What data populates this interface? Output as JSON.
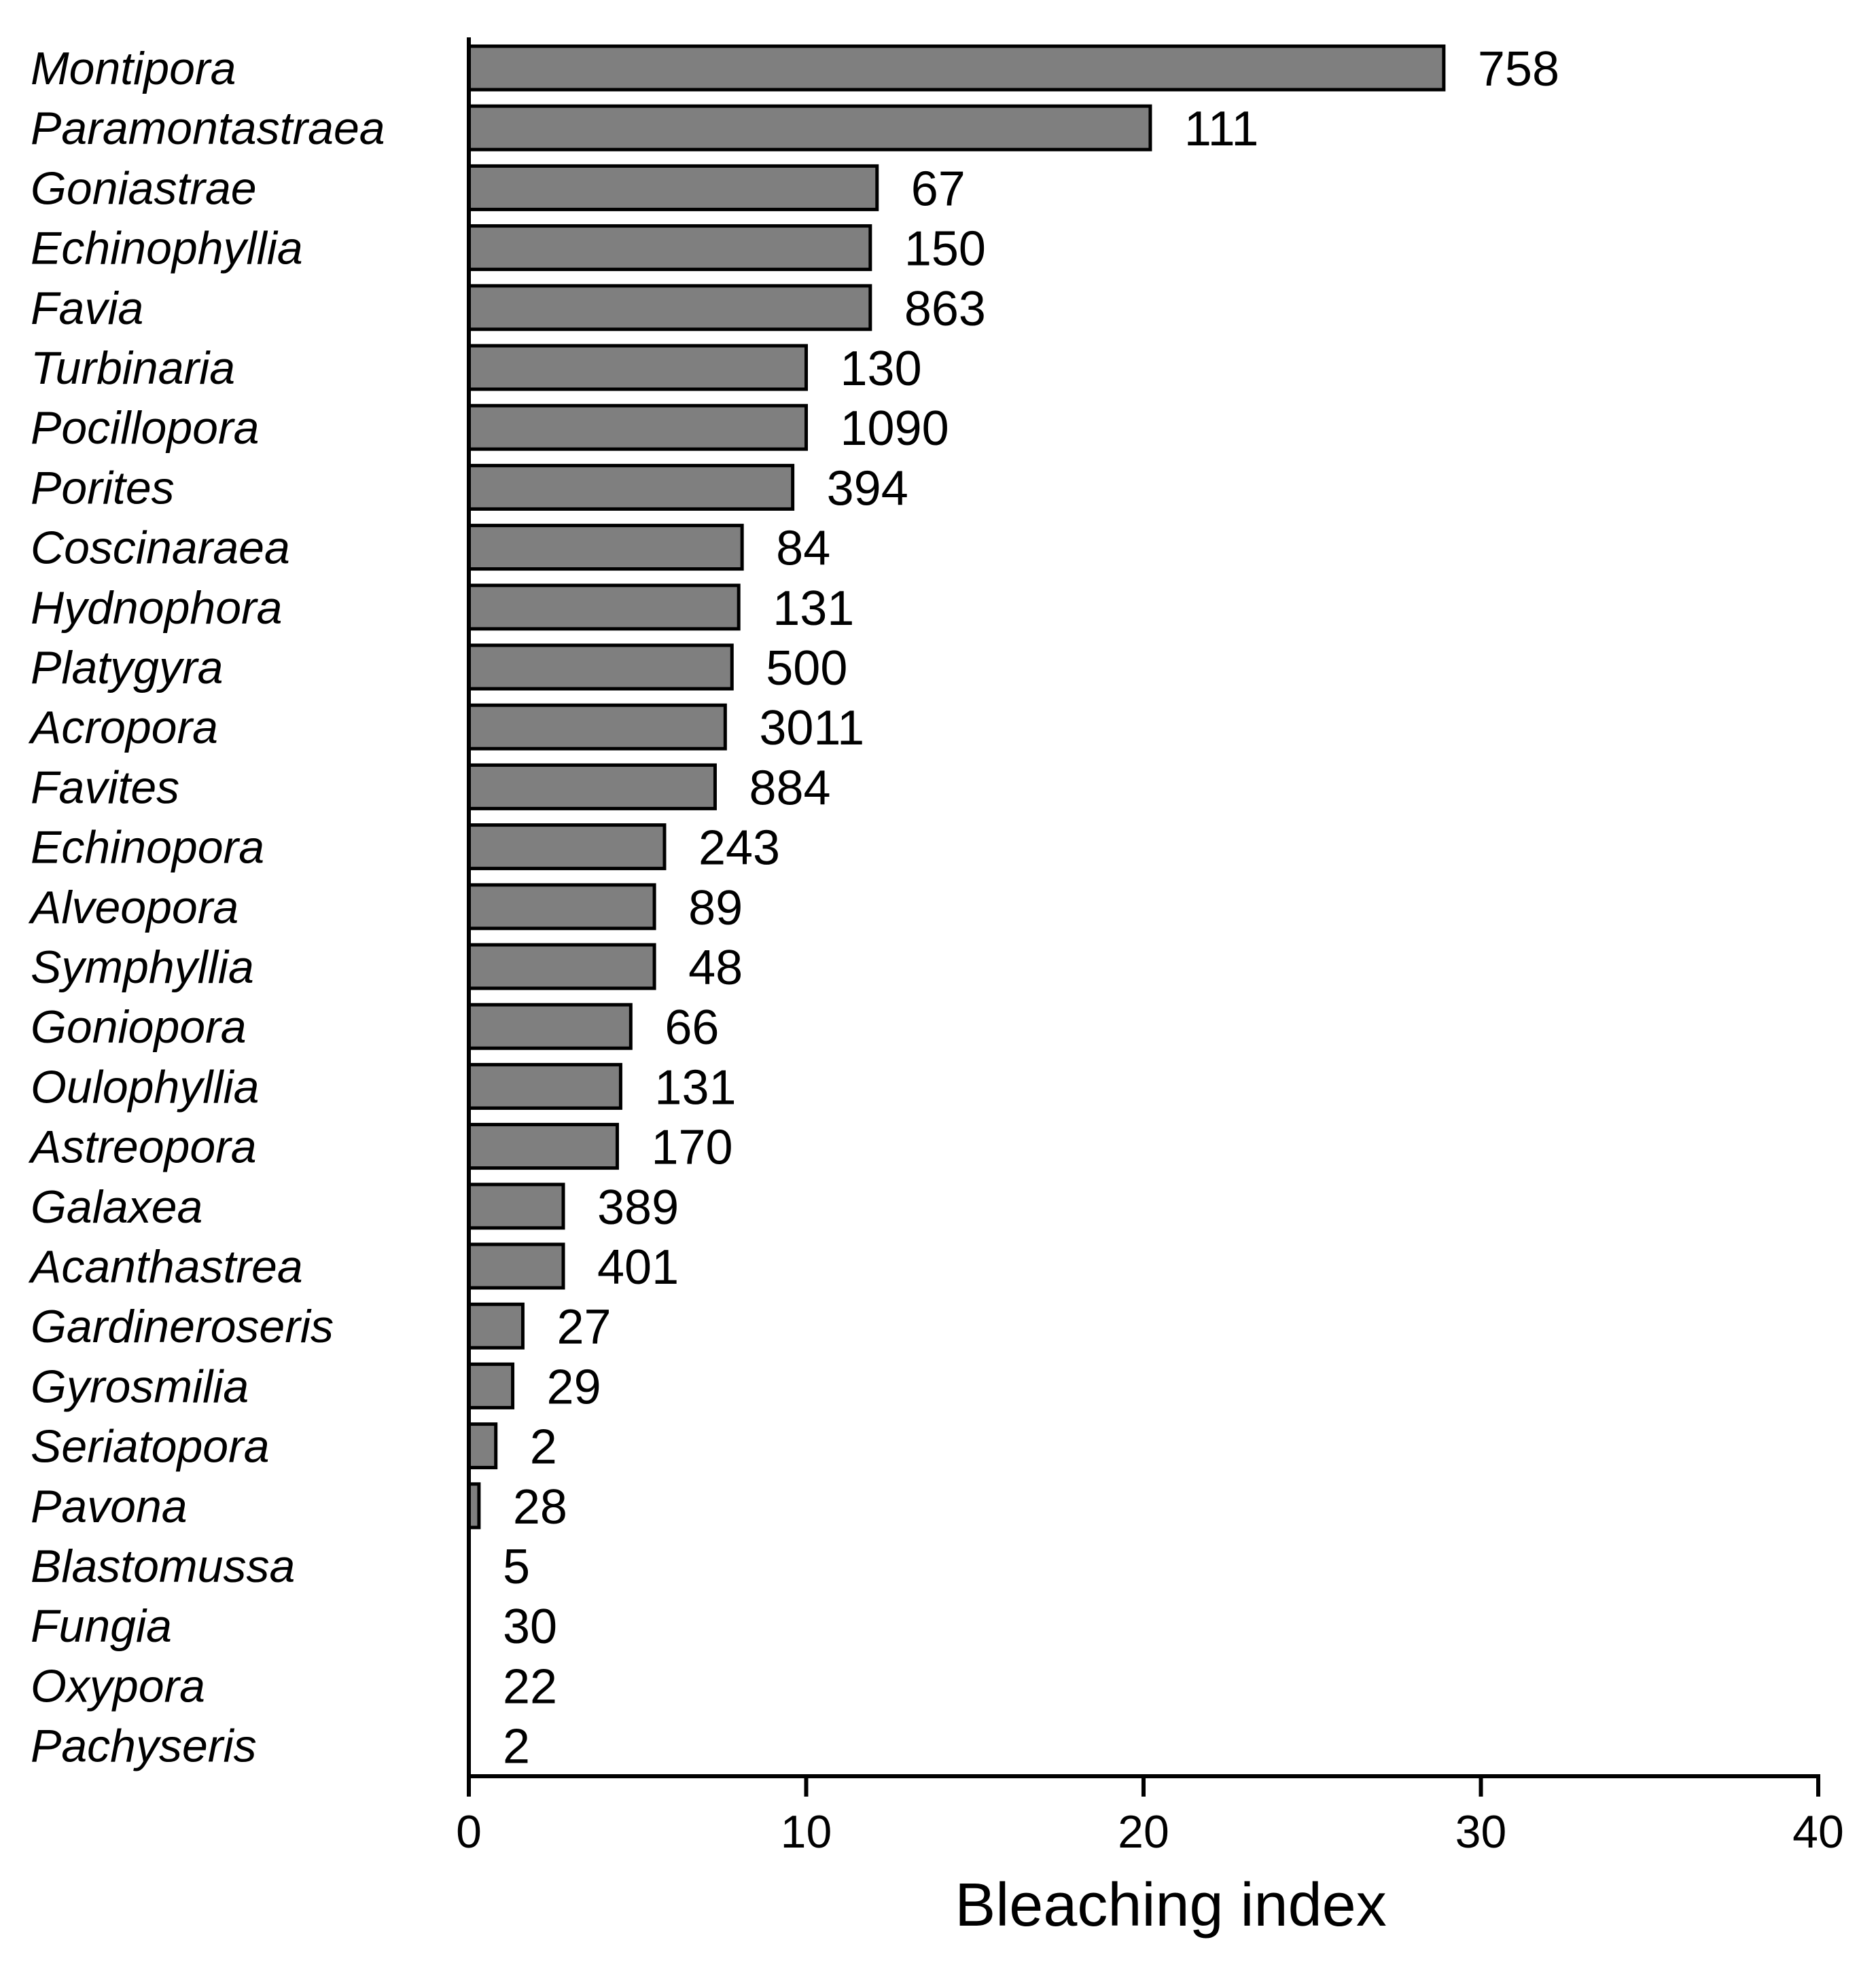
{
  "chart_data": {
    "type": "bar",
    "orientation": "horizontal",
    "categories": [
      "Montipora",
      "Paramontastraea",
      "Goniastrae",
      "Echinophyllia",
      "Favia",
      "Turbinaria",
      "Pocillopora",
      "Porites",
      "Coscinaraea",
      "Hydnophora",
      "Platygyra",
      "Acropora",
      "Favites",
      "Echinopora",
      "Alveopora",
      "Symphyllia",
      "Goniopora",
      "Oulophyllia",
      "Astreopora",
      "Galaxea",
      "Acanthastrea",
      "Gardineroseris",
      "Gyrosmilia",
      "Seriatopora",
      "Pavona",
      "Blastomussa",
      "Fungia",
      "Oxypora",
      "Pachyseris"
    ],
    "values": [
      28.9,
      20.2,
      12.1,
      11.9,
      11.9,
      10.0,
      10.0,
      9.6,
      8.1,
      8.0,
      7.8,
      7.6,
      7.3,
      5.8,
      5.5,
      5.5,
      4.8,
      4.5,
      4.4,
      2.8,
      2.8,
      1.6,
      1.3,
      0.8,
      0.3,
      0,
      0,
      0,
      0
    ],
    "data_labels": [
      "758",
      "111",
      "67",
      "150",
      "863",
      "130",
      "1090",
      "394",
      "84",
      "131",
      "500",
      "3011",
      "884",
      "243",
      "89",
      "48",
      "66",
      "131",
      "170",
      "389",
      "401",
      "27",
      "29",
      "2",
      "28",
      "5",
      "30",
      "22",
      "2"
    ],
    "xlabel": "Bleaching index",
    "ylabel": "",
    "xlim": [
      0,
      40
    ],
    "xticks": [
      "0",
      "10",
      "20",
      "30",
      "40"
    ],
    "grid": false,
    "bar_color": "#7f7f7f"
  }
}
